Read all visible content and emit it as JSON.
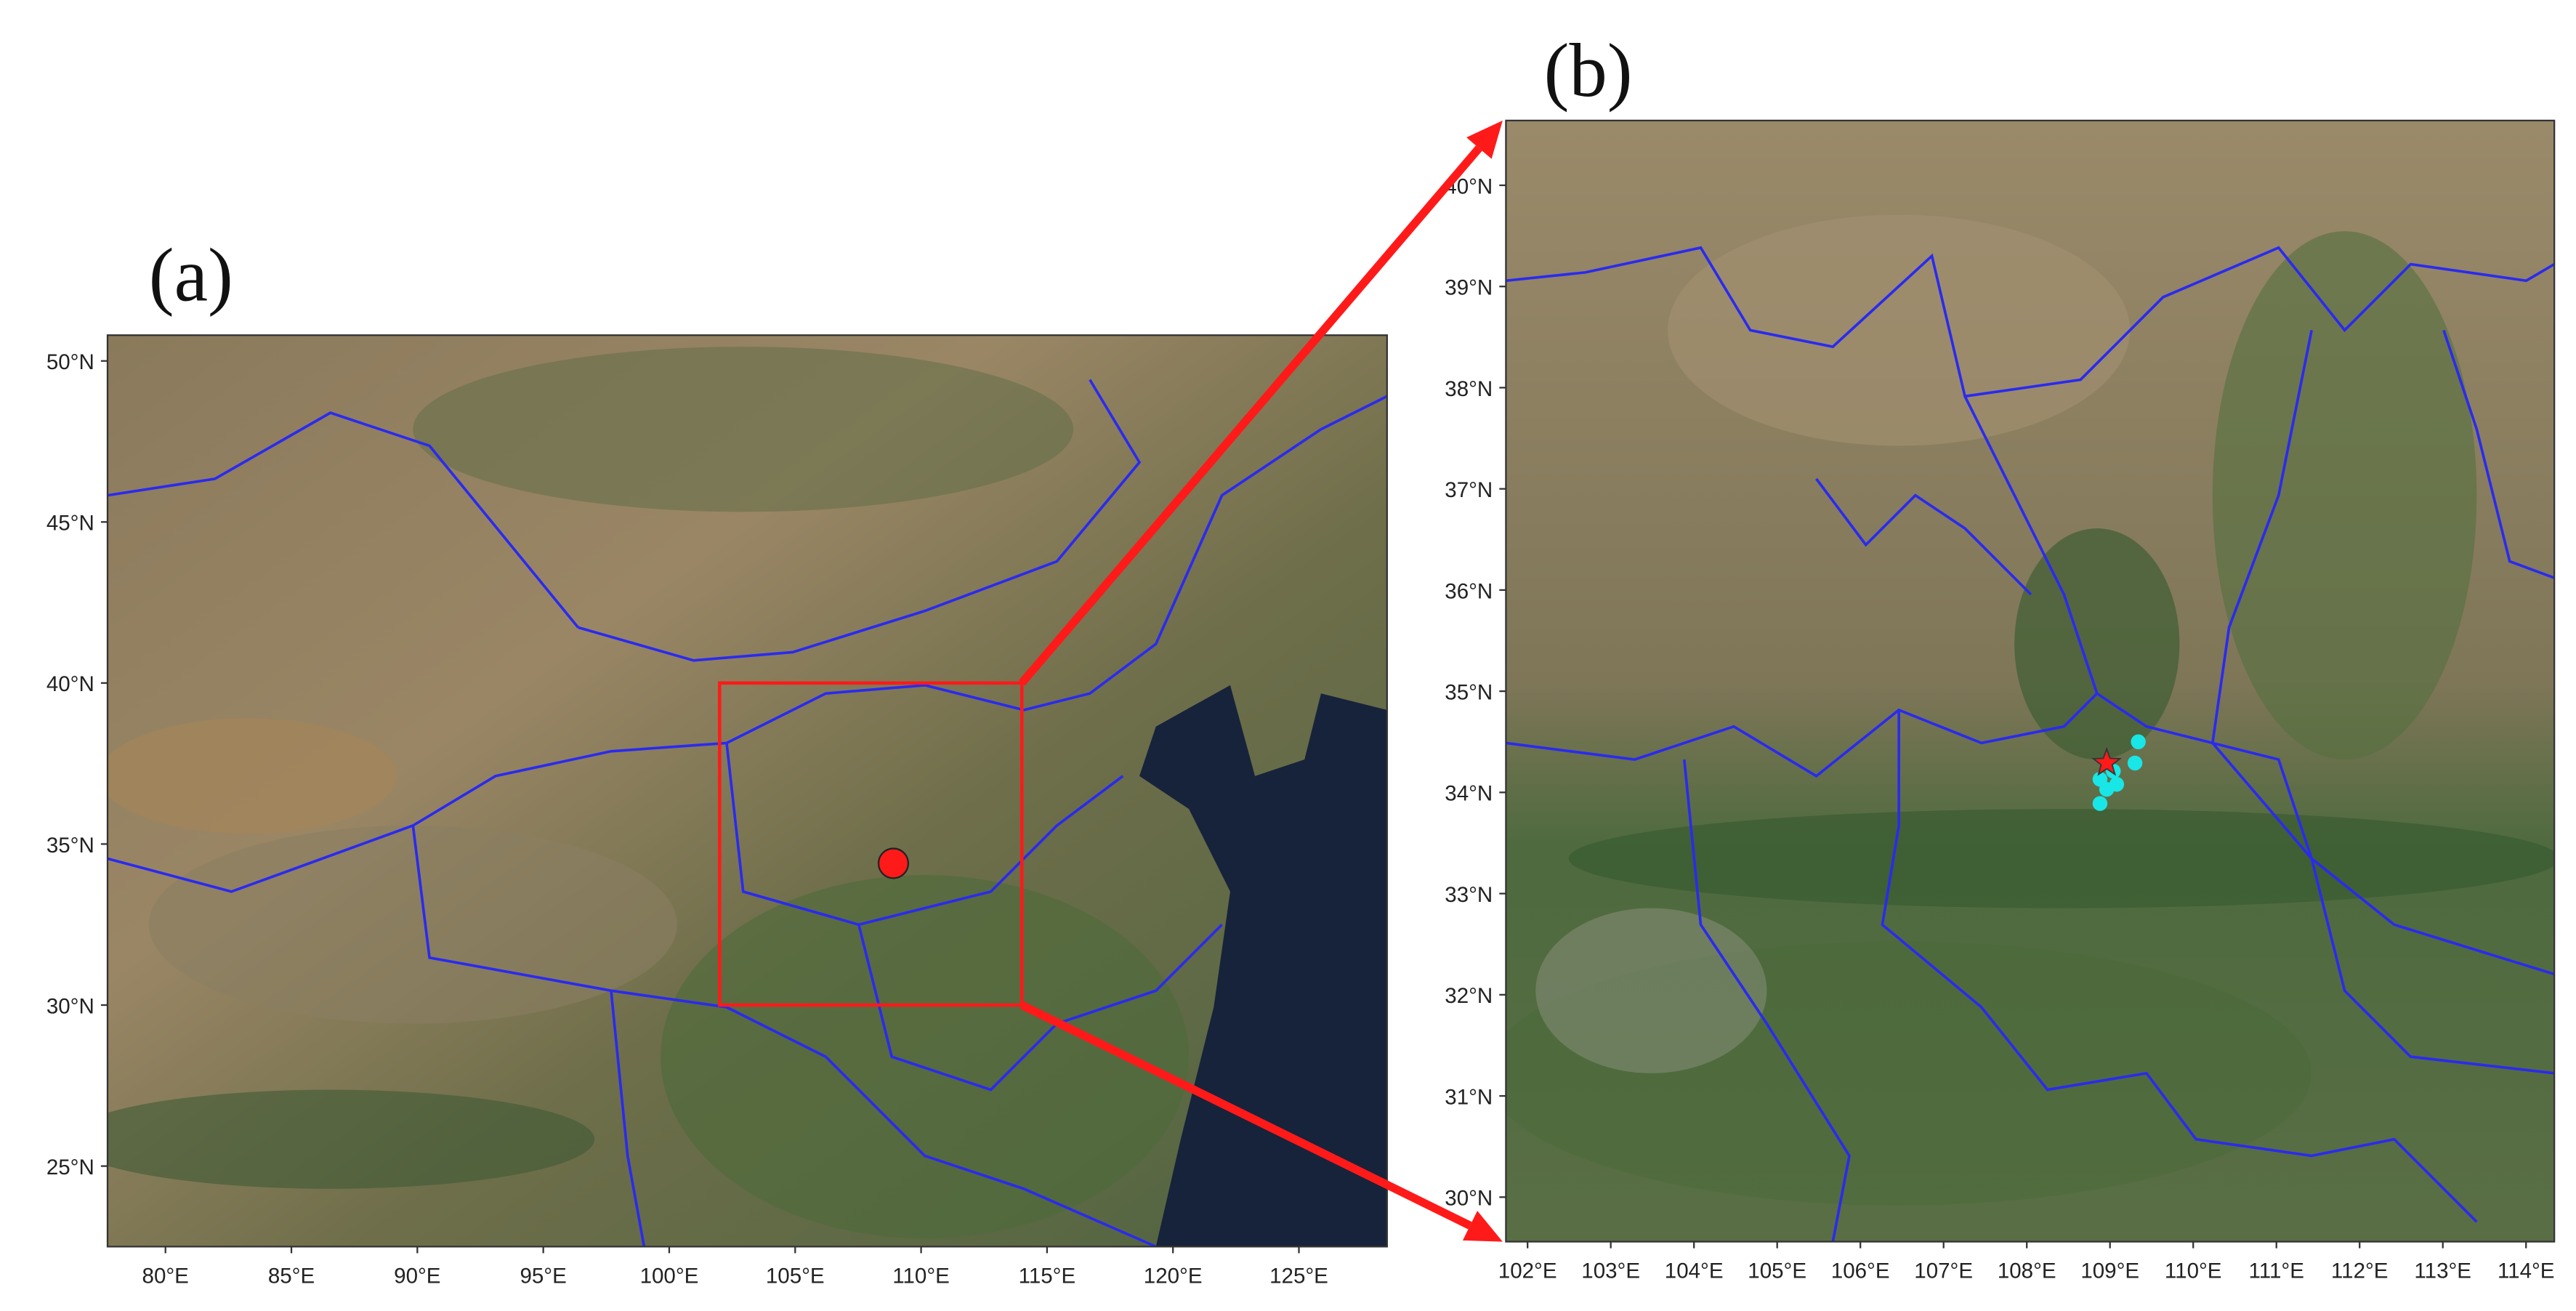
{
  "panels": [
    {
      "label": "(a)",
      "lonlim": [
        77.7,
        128.5
      ],
      "latlim": [
        22.5,
        50.8
      ],
      "lon_ticks": [
        {
          "value": 80,
          "label": "80°E"
        },
        {
          "value": 85,
          "label": "85°E"
        },
        {
          "value": 90,
          "label": "90°E"
        },
        {
          "value": 95,
          "label": "95°E"
        },
        {
          "value": 100,
          "label": "100°E"
        },
        {
          "value": 105,
          "label": "105°E"
        },
        {
          "value": 110,
          "label": "110°E"
        },
        {
          "value": 115,
          "label": "115°E"
        },
        {
          "value": 120,
          "label": "120°E"
        },
        {
          "value": 125,
          "label": "125°E"
        }
      ],
      "lat_ticks": [
        {
          "value": 25,
          "label": "25°N"
        },
        {
          "value": 30,
          "label": "30°N"
        },
        {
          "value": 35,
          "label": "35°N"
        },
        {
          "value": 40,
          "label": "40°N"
        },
        {
          "value": 45,
          "label": "45°N"
        },
        {
          "value": 50,
          "label": "50°N"
        }
      ],
      "zoom_box": {
        "lon": [
          102,
          114
        ],
        "lat": [
          30,
          40
        ]
      },
      "site": {
        "lon": 108.9,
        "lat": 34.4
      }
    },
    {
      "label": "(b)",
      "lonlim": [
        101.74,
        114.34
      ],
      "latlim": [
        29.56,
        40.64
      ],
      "lon_ticks": [
        {
          "value": 102,
          "label": "102°E"
        },
        {
          "value": 103,
          "label": "103°E"
        },
        {
          "value": 104,
          "label": "104°E"
        },
        {
          "value": 105,
          "label": "105°E"
        },
        {
          "value": 106,
          "label": "106°E"
        },
        {
          "value": 107,
          "label": "107°E"
        },
        {
          "value": 108,
          "label": "108°E"
        },
        {
          "value": 109,
          "label": "109°E"
        },
        {
          "value": 110,
          "label": "110°E"
        },
        {
          "value": 111,
          "label": "111°E"
        },
        {
          "value": 112,
          "label": "112°E"
        },
        {
          "value": 113,
          "label": "113°E"
        },
        {
          "value": 114,
          "label": "114°E"
        }
      ],
      "lat_ticks": [
        {
          "value": 30,
          "label": "30°N"
        },
        {
          "value": 31,
          "label": "31°N"
        },
        {
          "value": 32,
          "label": "32°N"
        },
        {
          "value": 33,
          "label": "33°N"
        },
        {
          "value": 34,
          "label": "34°N"
        },
        {
          "value": 35,
          "label": "35°N"
        },
        {
          "value": 36,
          "label": "36°N"
        },
        {
          "value": 37,
          "label": "37°N"
        },
        {
          "value": 38,
          "label": "38°N"
        },
        {
          "value": 39,
          "label": "39°N"
        },
        {
          "value": 40,
          "label": "40°N"
        }
      ],
      "stations": [
        {
          "lon": 109.34,
          "lat": 34.5
        },
        {
          "lon": 109.3,
          "lat": 34.29
        },
        {
          "lon": 108.88,
          "lat": 34.13
        },
        {
          "lon": 108.96,
          "lat": 34.03
        },
        {
          "lon": 109.08,
          "lat": 34.08
        },
        {
          "lon": 108.88,
          "lat": 33.89
        },
        {
          "lon": 109.04,
          "lat": 34.21
        }
      ],
      "site": {
        "lon": 108.96,
        "lat": 34.29
      }
    }
  ]
}
